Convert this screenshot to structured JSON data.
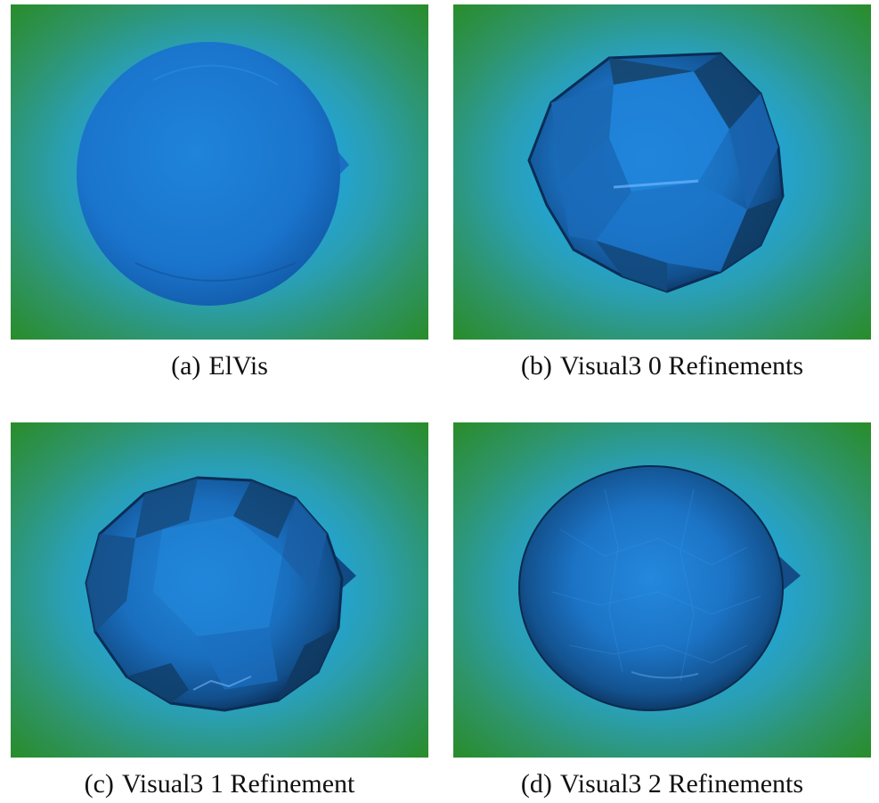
{
  "colors": {
    "background_green": "#2a8a1c",
    "halo_blue": "#1aa0ea",
    "sphere_blue": "#1a78d2",
    "sphere_dark": "#0a2d55"
  },
  "panels": [
    {
      "tag": "(a)",
      "label": "ElVis"
    },
    {
      "tag": "(b)",
      "label": "Visual3 0 Refinements"
    },
    {
      "tag": "(c)",
      "label": "Visual3 1 Refinement"
    },
    {
      "tag": "(d)",
      "label": "Visual3 2 Refinements"
    }
  ]
}
